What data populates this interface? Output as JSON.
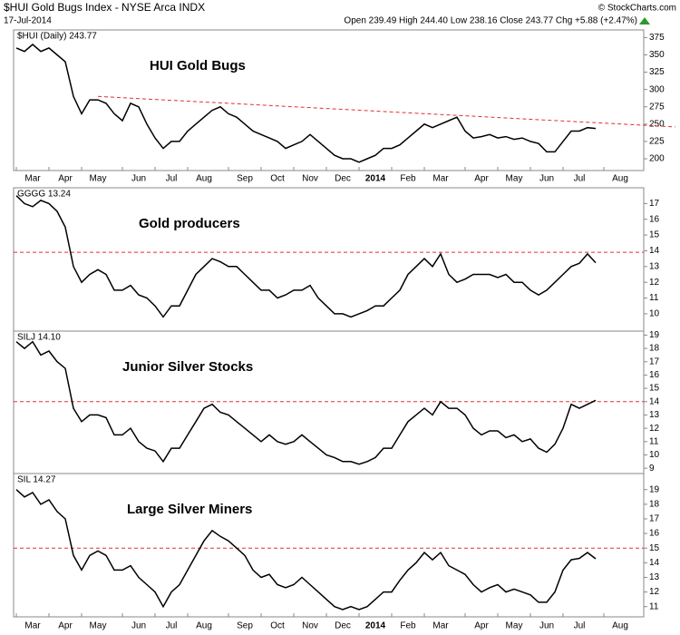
{
  "header": {
    "title": "$HUI Gold Bugs Index - NYSE Arca INDX",
    "date": "17-Jul-2014",
    "quote": "Open 239.49  High 244.40  Low 238.16  Close 243.77  Chg +5.88 (+2.47%)",
    "source": "© StockCharts.com"
  },
  "chart_data": [
    {
      "type": "line",
      "title": "$HUI (Daily) 243.77",
      "label": "HUI Gold Bugs",
      "label_color": "#1a1acc",
      "categories": [
        null,
        null,
        "Mar",
        null,
        null,
        null,
        "Apr",
        null,
        null,
        null,
        "May",
        null,
        null,
        null,
        null,
        "Jun",
        null,
        null,
        null,
        "Jul",
        null,
        null,
        null,
        "Aug",
        null,
        null,
        null,
        null,
        "Sep",
        null,
        null,
        null,
        "Oct",
        null,
        null,
        null,
        "Nov",
        null,
        null,
        null,
        "Dec",
        null,
        null,
        null,
        "2014",
        null,
        null,
        null,
        "Feb",
        null,
        null,
        null,
        "Mar",
        null,
        null,
        null,
        null,
        "Apr",
        null,
        null,
        null,
        "May",
        null,
        null,
        null,
        "Jun",
        null,
        null,
        null,
        "Jul",
        null,
        null,
        null,
        null,
        "Aug"
      ],
      "series": [
        {
          "color": "#000000",
          "values": [
            360,
            355,
            365,
            355,
            360,
            350,
            340,
            290,
            265,
            285,
            285,
            280,
            265,
            255,
            280,
            275,
            250,
            230,
            215,
            225,
            225,
            240,
            250,
            260,
            270,
            275,
            265,
            260,
            250,
            240,
            235,
            230,
            225,
            215,
            220,
            225,
            235,
            225,
            215,
            205,
            200,
            200,
            195,
            200,
            205,
            215,
            215,
            220,
            230,
            240,
            250,
            245,
            250,
            255,
            260,
            240,
            230,
            232,
            235,
            230,
            232,
            228,
            230,
            225,
            222,
            210,
            210,
            225,
            240,
            240,
            245,
            243.77,
            null,
            null,
            null
          ]
        }
      ],
      "trendline": {
        "color": "#e03030",
        "values": [
          290,
          246
        ]
      },
      "ylim": [
        183,
        386
      ],
      "yticks": [
        200,
        225,
        250,
        275,
        300,
        325,
        350,
        375
      ]
    },
    {
      "type": "line",
      "title": "GGGG 13.24",
      "label": "Gold producers",
      "label_color": "#1a1acc",
      "series": [
        {
          "color": "#000000",
          "values": [
            17.5,
            17,
            16.8,
            17.2,
            17,
            16.5,
            15.5,
            13,
            12,
            12.5,
            12.8,
            12.5,
            11.5,
            11.5,
            11.8,
            11.2,
            11,
            10.5,
            9.8,
            10.5,
            10.5,
            11.5,
            12.5,
            13,
            13.5,
            13.3,
            13,
            13,
            12.5,
            12,
            11.5,
            11.5,
            11,
            11.2,
            11.5,
            11.5,
            11.8,
            11,
            10.5,
            10,
            10,
            9.8,
            10,
            10.2,
            10.5,
            10.5,
            11,
            11.5,
            12.5,
            13,
            13.5,
            13,
            13.8,
            12.5,
            12,
            12.2,
            12.5,
            12.5,
            12.5,
            12.3,
            12.5,
            12,
            12,
            11.5,
            11.2,
            11.5,
            12,
            12.5,
            13,
            13.2,
            13.8,
            13.24,
            null,
            null,
            null
          ]
        }
      ],
      "hline": {
        "color": "#e03030",
        "value": 13.9
      },
      "ylim": [
        8.9,
        18
      ],
      "yticks": [
        10,
        11,
        12,
        13,
        14,
        15,
        16,
        17
      ]
    },
    {
      "type": "line",
      "title": "SILJ 14.10",
      "label": "Junior Silver Stocks",
      "label_color": "#1a1acc",
      "series": [
        {
          "color": "#000000",
          "values": [
            18.5,
            18,
            18.5,
            17.5,
            17.8,
            17,
            16.5,
            13.5,
            12.5,
            13,
            13,
            12.8,
            11.5,
            11.5,
            12,
            11,
            10.5,
            10.3,
            9.5,
            10.5,
            10.5,
            11.5,
            12.5,
            13.5,
            13.8,
            13.2,
            13,
            12.5,
            12,
            11.5,
            11,
            11.5,
            11,
            10.8,
            11,
            11.5,
            11,
            10.5,
            10,
            9.8,
            9.5,
            9.5,
            9.3,
            9.5,
            9.8,
            10.5,
            10.5,
            11.5,
            12.5,
            13,
            13.5,
            13,
            14,
            13.5,
            13.5,
            13,
            12,
            11.5,
            11.8,
            11.8,
            11.3,
            11.5,
            11,
            11.2,
            10.5,
            10.2,
            10.8,
            12,
            13.8,
            13.5,
            13.8,
            14.1,
            null,
            null,
            null
          ]
        }
      ],
      "hline": {
        "color": "#e03030",
        "value": 14
      },
      "ylim": [
        8.6,
        19.3
      ],
      "yticks": [
        9,
        10,
        11,
        12,
        13,
        14,
        15,
        16,
        17,
        18,
        19
      ]
    },
    {
      "type": "line",
      "title": "SIL 14.27",
      "label": "Large Silver Miners",
      "label_color": "#1a1acc",
      "series": [
        {
          "color": "#000000",
          "values": [
            19,
            18.5,
            18.8,
            18,
            18.3,
            17.5,
            17,
            14.5,
            13.5,
            14.5,
            14.8,
            14.5,
            13.5,
            13.5,
            13.8,
            13,
            12.5,
            12,
            11,
            12,
            12.5,
            13.5,
            14.5,
            15.5,
            16.2,
            15.8,
            15.5,
            15,
            14.5,
            13.5,
            13,
            13.2,
            12.5,
            12.3,
            12.5,
            13,
            12.5,
            12,
            11.5,
            11,
            10.8,
            11,
            10.8,
            11,
            11.5,
            12,
            12,
            12.8,
            13.5,
            14,
            14.7,
            14.2,
            14.7,
            13.8,
            13.5,
            13.2,
            12.5,
            12,
            12.3,
            12.5,
            12,
            12.2,
            12,
            11.8,
            11.3,
            11.3,
            12,
            13.5,
            14.2,
            14.3,
            14.7,
            14.27,
            null,
            null,
            null
          ]
        }
      ],
      "hline": {
        "color": "#e03030",
        "value": 15
      },
      "ylim": [
        10.3,
        20.1
      ],
      "yticks": [
        11,
        12,
        13,
        14,
        15,
        16,
        17,
        18,
        19
      ]
    }
  ]
}
